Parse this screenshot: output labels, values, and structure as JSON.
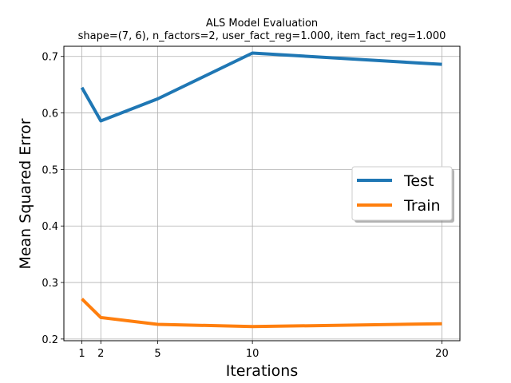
{
  "chart_data": {
    "type": "line",
    "title": "ALS Model Evaluation",
    "subtitle": "shape=(7, 6), n_factors=2, user_fact_reg=1.000, item_fact_reg=1.000",
    "xlabel": "Iterations",
    "ylabel": "Mean Squared Error",
    "x": [
      1,
      2,
      5,
      10,
      20
    ],
    "xticks": [
      "1",
      "2",
      "5",
      "10",
      "20"
    ],
    "yticks": [
      "0.2",
      "0.3",
      "0.4",
      "0.5",
      "0.6",
      "0.7"
    ],
    "xlim": [
      0.05,
      20.95
    ],
    "ylim": [
      0.197,
      0.718
    ],
    "grid": true,
    "legend_position": "center-right",
    "series": [
      {
        "name": "Test",
        "color": "#1f77b4",
        "values": [
          0.645,
          0.586,
          0.625,
          0.706,
          0.686
        ]
      },
      {
        "name": "Train",
        "color": "#ff7f0e",
        "values": [
          0.271,
          0.238,
          0.226,
          0.222,
          0.227
        ]
      }
    ]
  }
}
